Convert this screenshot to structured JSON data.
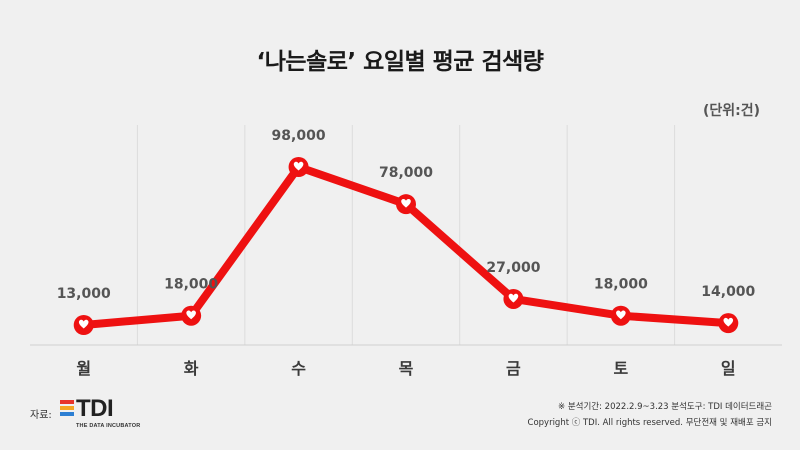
{
  "title": "‘나는솔로’ 요일별 평균 검색량",
  "unit": "(단위:건)",
  "chart_data": {
    "type": "line",
    "title": "‘나는솔로’ 요일별 평균 검색량",
    "categories": [
      "월",
      "화",
      "수",
      "목",
      "금",
      "토",
      "일"
    ],
    "values": [
      13000,
      18000,
      98000,
      78000,
      27000,
      18000,
      14000
    ],
    "labels": [
      "13,000",
      "18,000",
      "98,000",
      "78,000",
      "27,000",
      "18,000",
      "14,000"
    ],
    "line_color": "#ee1111",
    "marker_icon": "heart-icon"
  },
  "footer": {
    "source_label": "자료:",
    "logo_text": "TDI",
    "logo_sub": "THE DATA INCUBATOR",
    "note1": "※ 분석기간: 2022.2.9~3.23 분석도구: TDI 데이터드래곤",
    "note2": "Copyright ⓒ TDI. All rights reserved. 무단전재 및 재배포 금지"
  }
}
